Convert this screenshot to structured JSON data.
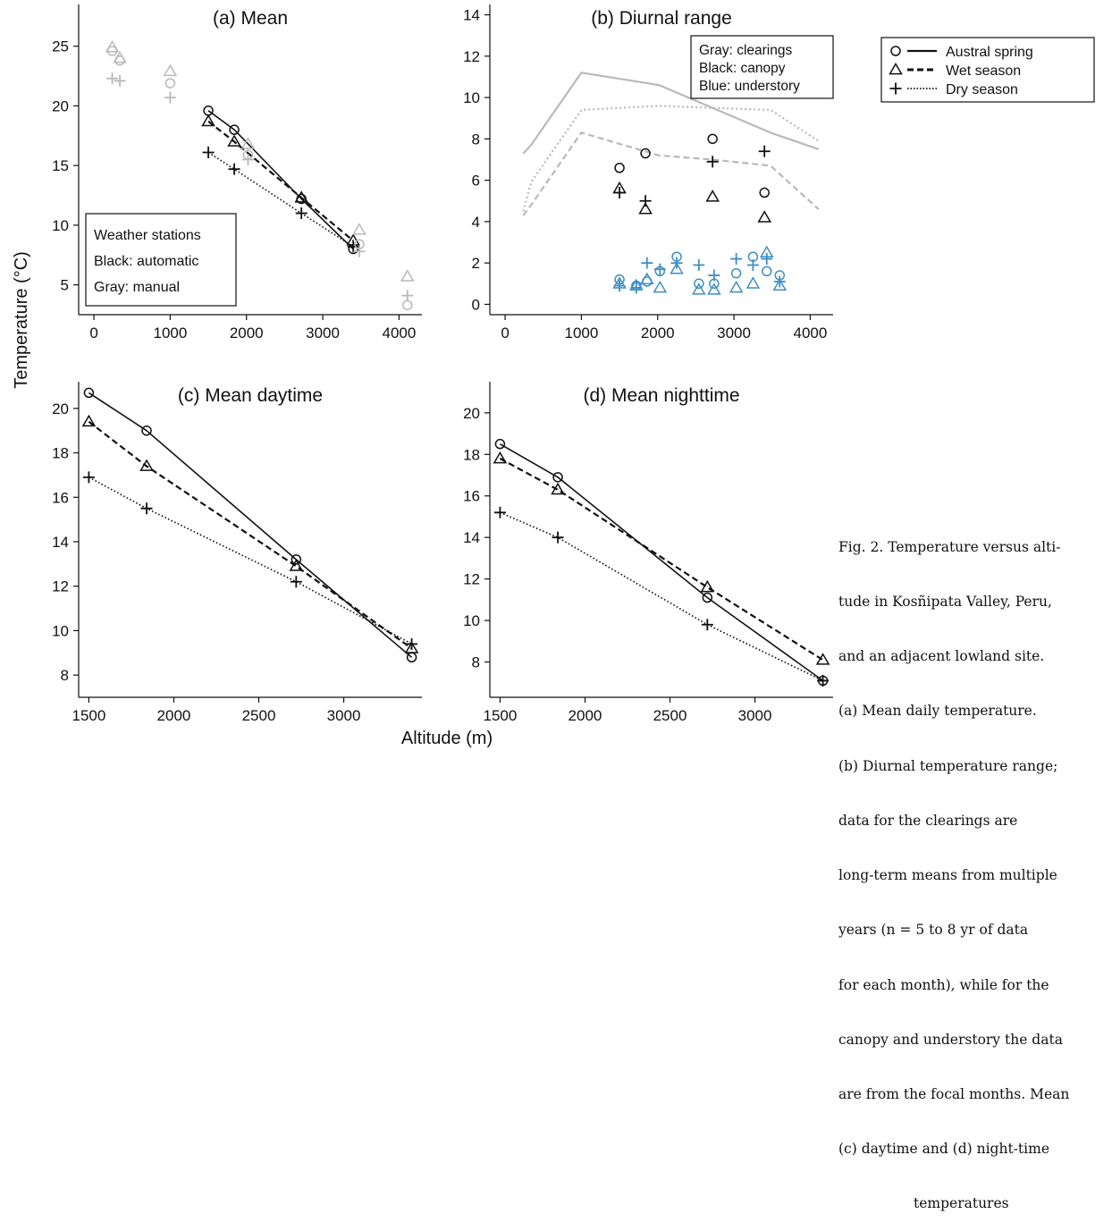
{
  "figure": {
    "ylabel": "Temperature (°C)",
    "xlabel": "Altitude (m)"
  },
  "legend": {
    "items": [
      {
        "marker": "circle",
        "line": "solid",
        "label": "Austral spring"
      },
      {
        "marker": "triangle",
        "line": "dashed",
        "label": "Wet season"
      },
      {
        "marker": "plus",
        "line": "dotted",
        "label": "Dry season"
      }
    ]
  },
  "colors": {
    "black": "#111111",
    "gray": "#b9b9b9",
    "blue": "#3d8fc3"
  },
  "caption": {
    "lines": [
      "Fig. 2. Temperature versus alti-",
      "tude in Kosñipata Valley, Peru,",
      "and an adjacent lowland site.",
      "(a) Mean daily temperature.",
      "(b) Diurnal temperature range;",
      "data for the clearings are",
      "long-term means from multiple",
      "years (n = 5 to 8 yr of data",
      "for each month), while for the",
      "canopy and understory the data",
      "are from the focal months. Mean",
      "(c) daytime and (d) night-time",
      "temperatures"
    ]
  },
  "chart_data": [
    {
      "id": "a",
      "type": "scatter",
      "title": "(a) Mean",
      "xlim": [
        -200,
        4300
      ],
      "ylim": [
        2.5,
        28.5
      ],
      "xticks": [
        0,
        1000,
        2000,
        3000,
        4000
      ],
      "yticks": [
        5,
        10,
        15,
        20,
        25
      ],
      "annotation": {
        "lines": [
          "Weather stations",
          "Black: automatic",
          "Gray: manual"
        ],
        "placement": "bottom-left"
      },
      "series": [
        {
          "name": "Austral spring",
          "group": "automatic",
          "color": "black",
          "marker": "circle",
          "line": "solid",
          "x": [
            1500,
            1840,
            2720,
            3400
          ],
          "y": [
            19.6,
            18.0,
            12.2,
            8.0
          ]
        },
        {
          "name": "Wet season",
          "group": "automatic",
          "color": "black",
          "marker": "triangle",
          "line": "dashed",
          "x": [
            1500,
            1840,
            2720,
            3400
          ],
          "y": [
            18.7,
            17.0,
            12.3,
            8.7
          ]
        },
        {
          "name": "Dry season",
          "group": "automatic",
          "color": "black",
          "marker": "plus",
          "line": "dotted",
          "x": [
            1500,
            1840,
            2720,
            3400
          ],
          "y": [
            16.1,
            14.7,
            11.0,
            8.2
          ]
        },
        {
          "name": "Austral spring",
          "group": "manual",
          "color": "gray",
          "marker": "circle",
          "line": "none",
          "x": [
            240,
            340,
            1000,
            2020,
            3480,
            4110
          ],
          "y": [
            24.6,
            23.8,
            21.9,
            15.9,
            8.4,
            3.3
          ]
        },
        {
          "name": "Wet season",
          "group": "manual",
          "color": "gray",
          "marker": "triangle",
          "line": "none",
          "x": [
            240,
            340,
            1000,
            2020,
            3480,
            4110
          ],
          "y": [
            24.9,
            24.0,
            22.9,
            16.8,
            9.6,
            5.7
          ]
        },
        {
          "name": "Dry season",
          "group": "manual",
          "color": "gray",
          "marker": "plus",
          "line": "none",
          "x": [
            240,
            340,
            1000,
            2020,
            3480,
            4110
          ],
          "y": [
            22.3,
            22.1,
            20.7,
            15.5,
            7.8,
            4.1
          ]
        }
      ]
    },
    {
      "id": "b",
      "type": "scatter",
      "title": "(b) Diurnal range",
      "xlim": [
        -200,
        4300
      ],
      "ylim": [
        -0.5,
        14.5
      ],
      "xticks": [
        0,
        1000,
        2000,
        3000,
        4000
      ],
      "yticks": [
        0,
        2,
        4,
        6,
        8,
        10,
        12,
        14
      ],
      "annotation": {
        "lines": [
          "Gray: clearings",
          "Black: canopy",
          "Blue: understory"
        ],
        "placement": "top-right"
      },
      "series": [
        {
          "name": "Austral spring",
          "group": "clearings",
          "color": "gray",
          "marker": "none",
          "line": "solid",
          "x": [
            240,
            340,
            1000,
            2020,
            2720,
            3480,
            4110
          ],
          "y": [
            7.3,
            7.7,
            11.2,
            10.6,
            9.5,
            8.3,
            7.5
          ]
        },
        {
          "name": "Wet season",
          "group": "clearings",
          "color": "gray",
          "marker": "none",
          "line": "dashed",
          "x": [
            240,
            340,
            1000,
            2020,
            2720,
            3480,
            4110
          ],
          "y": [
            4.3,
            4.8,
            8.3,
            7.2,
            7.0,
            6.7,
            4.6
          ]
        },
        {
          "name": "Dry season",
          "group": "clearings",
          "color": "gray",
          "marker": "none",
          "line": "dotted",
          "x": [
            240,
            340,
            1000,
            2020,
            2720,
            3480,
            4110
          ],
          "y": [
            4.5,
            5.9,
            9.4,
            9.6,
            9.5,
            9.4,
            7.9
          ]
        },
        {
          "name": "Austral spring",
          "group": "canopy",
          "color": "black",
          "marker": "circle",
          "line": "none",
          "x": [
            1500,
            1840,
            2720,
            3400
          ],
          "y": [
            6.6,
            7.3,
            8.0,
            5.4
          ]
        },
        {
          "name": "Wet season",
          "group": "canopy",
          "color": "black",
          "marker": "triangle",
          "line": "none",
          "x": [
            1500,
            1840,
            2720,
            3400
          ],
          "y": [
            5.6,
            4.6,
            5.2,
            4.2
          ]
        },
        {
          "name": "Dry season",
          "group": "canopy",
          "color": "black",
          "marker": "plus",
          "line": "none",
          "x": [
            1500,
            1840,
            2720,
            3400
          ],
          "y": [
            5.4,
            5.0,
            6.9,
            7.4
          ]
        },
        {
          "name": "Austral spring",
          "group": "understory",
          "color": "blue",
          "marker": "circle",
          "line": "none",
          "x": [
            1500,
            1720,
            1860,
            2030,
            2250,
            2540,
            2740,
            3030,
            3250,
            3430,
            3600
          ],
          "y": [
            1.2,
            0.9,
            1.1,
            1.6,
            2.3,
            1.0,
            1.0,
            1.5,
            2.3,
            1.6,
            1.4
          ]
        },
        {
          "name": "Wet season",
          "group": "understory",
          "color": "blue",
          "marker": "triangle",
          "line": "none",
          "x": [
            1500,
            1720,
            1860,
            2030,
            2250,
            2540,
            2740,
            3030,
            3250,
            3430,
            3600
          ],
          "y": [
            1.0,
            0.9,
            1.2,
            0.8,
            1.7,
            0.7,
            0.7,
            0.8,
            1.0,
            2.5,
            0.9
          ]
        },
        {
          "name": "Dry season",
          "group": "understory",
          "color": "blue",
          "marker": "plus",
          "line": "none",
          "x": [
            1500,
            1720,
            1860,
            2030,
            2250,
            2540,
            2740,
            3030,
            3250,
            3430,
            3600
          ],
          "y": [
            0.9,
            0.8,
            2.0,
            1.7,
            2.0,
            1.9,
            1.4,
            2.2,
            1.9,
            2.2,
            1.1
          ]
        }
      ]
    },
    {
      "id": "c",
      "type": "line",
      "title": "(c) Mean daytime",
      "xlim": [
        1440,
        3460
      ],
      "ylim": [
        7.0,
        21.2
      ],
      "xticks": [
        1500,
        2000,
        2500,
        3000
      ],
      "yticks": [
        8,
        10,
        12,
        14,
        16,
        18,
        20
      ],
      "series": [
        {
          "name": "Austral spring",
          "color": "black",
          "marker": "circle",
          "line": "solid",
          "x": [
            1500,
            1840,
            2720,
            3400
          ],
          "y": [
            20.7,
            19.0,
            13.2,
            8.8
          ]
        },
        {
          "name": "Wet season",
          "color": "black",
          "marker": "triangle",
          "line": "dashed",
          "x": [
            1500,
            1840,
            2720,
            3400
          ],
          "y": [
            19.4,
            17.4,
            12.9,
            9.2
          ]
        },
        {
          "name": "Dry season",
          "color": "black",
          "marker": "plus",
          "line": "dotted",
          "x": [
            1500,
            1840,
            2720,
            3400
          ],
          "y": [
            16.9,
            15.5,
            12.2,
            9.4
          ]
        }
      ]
    },
    {
      "id": "d",
      "type": "line",
      "title": "(d) Mean nighttime",
      "xlim": [
        1440,
        3460
      ],
      "ylim": [
        6.3,
        21.5
      ],
      "xticks": [
        1500,
        2000,
        2500,
        3000
      ],
      "yticks": [
        8,
        10,
        12,
        14,
        16,
        18,
        20
      ],
      "series": [
        {
          "name": "Austral spring",
          "color": "black",
          "marker": "circle",
          "line": "solid",
          "x": [
            1500,
            1840,
            2720,
            3400
          ],
          "y": [
            18.5,
            16.9,
            11.1,
            7.1
          ]
        },
        {
          "name": "Wet season",
          "color": "black",
          "marker": "triangle",
          "line": "dashed",
          "x": [
            1500,
            1840,
            2720,
            3400
          ],
          "y": [
            17.8,
            16.3,
            11.6,
            8.1
          ]
        },
        {
          "name": "Dry season",
          "color": "black",
          "marker": "plus",
          "line": "dotted",
          "x": [
            1500,
            1840,
            2720,
            3400
          ],
          "y": [
            15.2,
            14.0,
            9.8,
            7.1
          ]
        }
      ]
    }
  ]
}
